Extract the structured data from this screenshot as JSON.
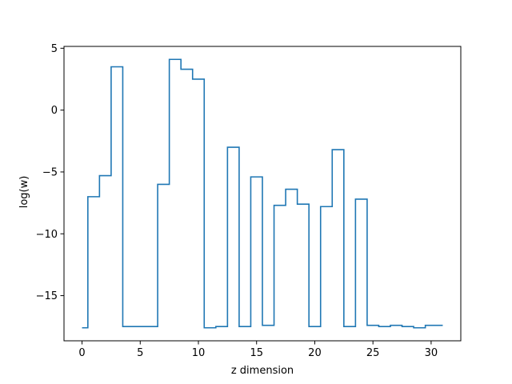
{
  "chart_data": {
    "type": "line",
    "drawstyle": "steps-mid",
    "xlabel": "z dimension",
    "ylabel": "log(w)",
    "xlim": [
      -1.55,
      32.55
    ],
    "ylim": [
      -18.65,
      5.15
    ],
    "x_ticks": [
      0,
      5,
      10,
      15,
      20,
      25,
      30
    ],
    "y_ticks": [
      5,
      0,
      -5,
      -10,
      -15
    ],
    "y_tick_labels": [
      "5",
      "0",
      "−5",
      "−10",
      "−15"
    ],
    "grid": false,
    "legend": "none",
    "line_color": "#1f77b4",
    "series": [
      {
        "x": [
          0,
          1,
          2,
          3,
          4,
          5,
          6,
          7,
          8,
          9,
          10,
          11,
          12,
          13,
          14,
          15,
          16,
          17,
          18,
          19,
          20,
          21,
          22,
          23,
          24,
          25,
          26,
          27,
          28,
          29,
          30,
          31
        ],
        "values": [
          -17.6,
          -7.0,
          -5.3,
          3.5,
          -17.5,
          -17.5,
          -17.5,
          -6.0,
          4.1,
          3.3,
          2.5,
          -17.6,
          -17.5,
          -3.0,
          -17.5,
          -5.4,
          -17.4,
          -7.7,
          -6.4,
          -7.6,
          -17.5,
          -7.8,
          -3.2,
          -17.5,
          -7.2,
          -17.4,
          -17.5,
          -17.4,
          -17.5,
          -17.6,
          -17.4,
          -17.4
        ]
      }
    ]
  }
}
